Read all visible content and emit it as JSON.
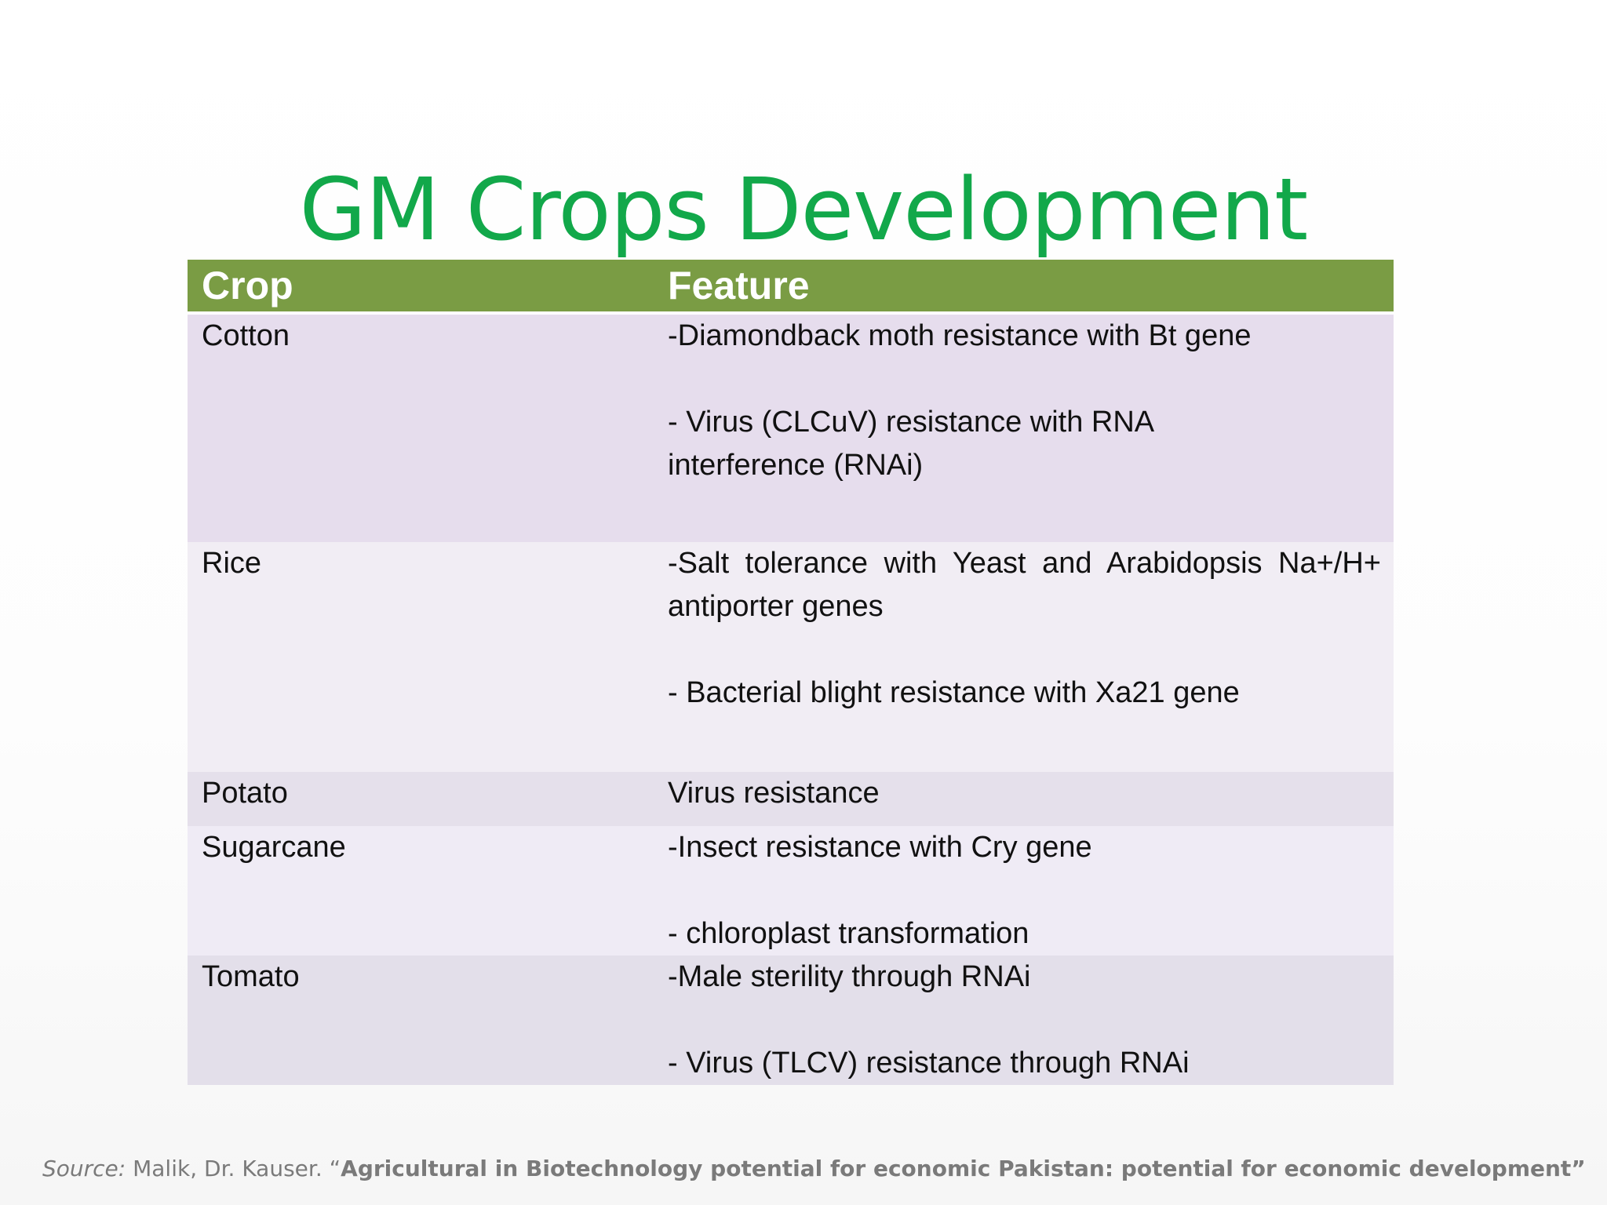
{
  "slide": {
    "title": "GM Crops Development"
  },
  "table": {
    "headers": {
      "crop": "Crop",
      "feature": "Feature"
    },
    "rows": [
      {
        "crop": "Cotton",
        "feature_lines": [
          "-Diamondback moth resistance with Bt gene",
          "",
          "- Virus (CLCuV) resistance with RNA",
          "interference (RNAi)"
        ]
      },
      {
        "crop": "Rice",
        "feature_lines": [
          "-Salt tolerance with Yeast and Arabidopsis Na+/H+",
          "antiporter genes",
          "",
          "- Bacterial blight resistance with Xa21 gene"
        ]
      },
      {
        "crop": "Potato",
        "feature_lines": [
          "Virus resistance"
        ]
      },
      {
        "crop": "Sugarcane",
        "feature_lines": [
          "-Insect resistance with Cry gene",
          "",
          "- chloroplast transformation"
        ]
      },
      {
        "crop": "Tomato",
        "feature_lines": [
          "-Male sterility through RNAi",
          "",
          "- Virus (TLCV) resistance through RNAi"
        ]
      }
    ]
  },
  "source": {
    "label": "Source:",
    "author": " Malik, Dr. Kauser. “",
    "title": "Agricultural in Biotechnology potential for economic Pakistan: potential for economic development”"
  },
  "colors": {
    "title": "#12a84a",
    "header_bg": "#7a9c44",
    "row_lavender": "#e6dded",
    "row_light": "#f1edf4",
    "source_text": "#7a7a7a"
  }
}
